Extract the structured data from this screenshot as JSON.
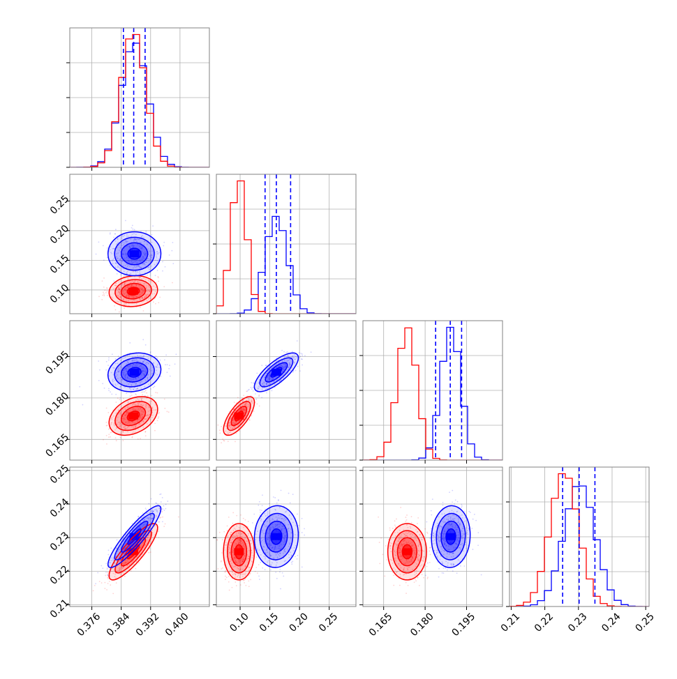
{
  "chart_data": {
    "type": "corner",
    "colors": {
      "series_a": "#0000ff",
      "series_b": "#ff0000",
      "grid": "#b0b0b0",
      "frame": "#808080"
    },
    "series": [
      {
        "color": "#0000ff",
        "marginals": [
          {
            "mean": 0.3876,
            "sd": 0.0036,
            "quantiles": [
              0.3846,
              0.3874,
              0.3905
            ]
          },
          {
            "mean": 0.161,
            "sd": 0.0185,
            "quantiles": [
              0.142,
              0.161,
              0.185
            ]
          },
          {
            "mean": 0.1893,
            "sd": 0.0035,
            "quantiles": [
              0.1838,
              0.1891,
              0.1932
            ]
          },
          {
            "mean": 0.2303,
            "sd": 0.0046,
            "quantiles": [
              0.2253,
              0.2302,
              0.2349
            ]
          }
        ],
        "correlations": [
          {
            "i": 1,
            "j": 0,
            "rho": 0.0
          },
          {
            "i": 2,
            "j": 0,
            "rho": 0.15
          },
          {
            "i": 2,
            "j": 1,
            "rho": 0.75
          },
          {
            "i": 3,
            "j": 0,
            "rho": 0.9
          },
          {
            "i": 3,
            "j": 1,
            "rho": 0.05
          },
          {
            "i": 3,
            "j": 2,
            "rho": 0.05
          }
        ]
      },
      {
        "color": "#ff0000",
        "marginals": [
          {
            "mean": 0.3873,
            "sd": 0.0033
          },
          {
            "mean": 0.098,
            "sd": 0.013
          },
          {
            "mean": 0.1735,
            "sd": 0.0035
          },
          {
            "mean": 0.2258,
            "sd": 0.0042
          }
        ],
        "correlations": [
          {
            "i": 1,
            "j": 0,
            "rho": 0.1
          },
          {
            "i": 2,
            "j": 0,
            "rho": 0.35
          },
          {
            "i": 2,
            "j": 1,
            "rho": 0.7
          },
          {
            "i": 3,
            "j": 0,
            "rho": 0.85
          },
          {
            "i": 3,
            "j": 1,
            "rho": 0.0
          },
          {
            "i": 3,
            "j": 2,
            "rho": 0.0
          }
        ]
      }
    ],
    "axes": [
      {
        "range": [
          0.37,
          0.408
        ],
        "ticks": [
          0.376,
          0.384,
          0.392,
          0.4
        ],
        "tick_labels": [
          "0.376",
          "0.384",
          "0.392",
          "0.400"
        ]
      },
      {
        "range": [
          0.06,
          0.295
        ],
        "ticks": [
          0.1,
          0.15,
          0.2,
          0.25
        ],
        "tick_labels": [
          "0.10",
          "0.15",
          "0.20",
          "0.25"
        ]
      },
      {
        "range": [
          0.1575,
          0.208
        ],
        "ticks": [
          0.165,
          0.18,
          0.195
        ],
        "tick_labels": [
          "0.165",
          "0.180",
          "0.195"
        ]
      },
      {
        "range": [
          0.2095,
          0.251
        ],
        "ticks": [
          0.21,
          0.22,
          0.23,
          0.24,
          0.25
        ],
        "tick_labels": [
          "0.21",
          "0.22",
          "0.23",
          "0.24",
          "0.25"
        ]
      }
    ],
    "grid": true,
    "contour_levels": [
      0.5,
      1.0,
      1.5,
      2.0
    ],
    "histogram_bins": 20,
    "quantile_lines_series": 0
  }
}
